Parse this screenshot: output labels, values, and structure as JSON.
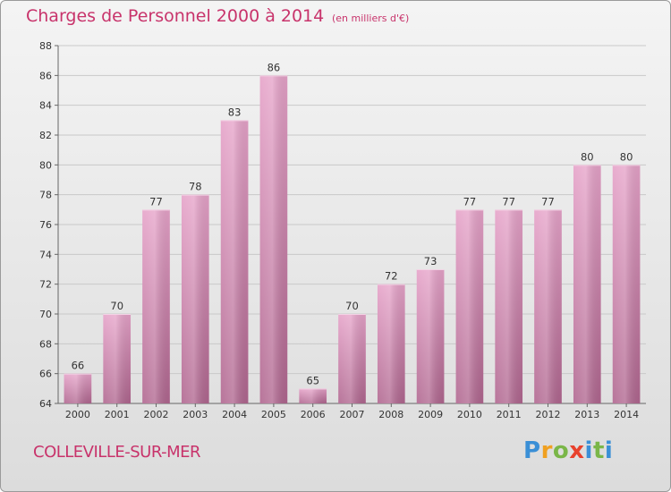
{
  "title": "Charges de Personnel 2000 à 2014",
  "subtitle": "(en milliers d'€)",
  "location": "COLLEVILLE-SUR-MER",
  "brand": {
    "letters": [
      "P",
      "r",
      "o",
      "x",
      "i",
      "t",
      "i"
    ],
    "colors": [
      "#3a8fd6",
      "#f0a020",
      "#7ab648",
      "#e8412c",
      "#3a8fd6",
      "#7ab648",
      "#3a8fd6"
    ]
  },
  "colors": {
    "title": "#c8336b",
    "bar_light": "#e6a3c9",
    "bar_dark": "#b0668f",
    "grid": "#c9c9c9"
  },
  "chart_data": {
    "type": "bar",
    "title": "Charges de Personnel 2000 à 2014",
    "subtitle": "(en milliers d'€)",
    "categories": [
      "2000",
      "2001",
      "2002",
      "2003",
      "2004",
      "2005",
      "2006",
      "2007",
      "2008",
      "2009",
      "2010",
      "2011",
      "2012",
      "2013",
      "2014"
    ],
    "values": [
      66,
      70,
      77,
      78,
      83,
      86,
      65,
      70,
      72,
      73,
      77,
      77,
      77,
      80,
      80
    ],
    "ylim": [
      64,
      88
    ],
    "yticks": [
      64,
      66,
      68,
      70,
      72,
      74,
      76,
      78,
      80,
      82,
      84,
      86,
      88
    ],
    "grid": true,
    "legend": "none"
  }
}
